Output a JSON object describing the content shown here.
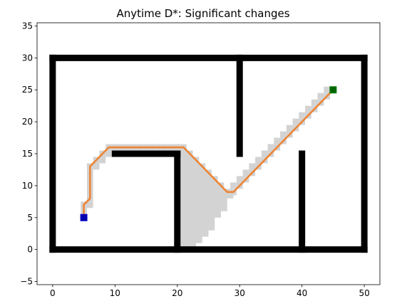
{
  "chart_data": {
    "type": "scatter",
    "title": "Anytime D*: Significant changes",
    "xlabel": "",
    "ylabel": "",
    "xlim": [
      -2.5,
      52.5
    ],
    "ylim": [
      -5.5,
      35.5
    ],
    "x_ticks": [
      0,
      10,
      20,
      30,
      40,
      50
    ],
    "y_ticks": [
      -5,
      0,
      5,
      10,
      15,
      20,
      25,
      30,
      35
    ],
    "grid": false,
    "colors": {
      "obstacle": "#000000",
      "visited": "#d3d3d3",
      "path": "#ed8434",
      "start": "#0000aa",
      "goal": "#006400"
    },
    "start": [
      5,
      5
    ],
    "goal": [
      45,
      25
    ],
    "walls": [
      {
        "from": [
          0,
          0
        ],
        "to": [
          50,
          0
        ]
      },
      {
        "from": [
          50,
          0
        ],
        "to": [
          50,
          30
        ]
      },
      {
        "from": [
          0,
          30
        ],
        "to": [
          50,
          30
        ]
      },
      {
        "from": [
          0,
          0
        ],
        "to": [
          0,
          30
        ]
      },
      {
        "from": [
          10,
          15
        ],
        "to": [
          20,
          15
        ]
      },
      {
        "from": [
          20,
          0
        ],
        "to": [
          20,
          15
        ]
      },
      {
        "from": [
          30,
          15
        ],
        "to": [
          30,
          30
        ]
      },
      {
        "from": [
          40,
          0
        ],
        "to": [
          40,
          15
        ]
      }
    ],
    "visited_region": [
      [
        20,
        0
      ],
      [
        23,
        0
      ],
      [
        23,
        1
      ],
      [
        24,
        1
      ],
      [
        24,
        2
      ],
      [
        25,
        2
      ],
      [
        25,
        3
      ],
      [
        26,
        3
      ],
      [
        26,
        5
      ],
      [
        27,
        5
      ],
      [
        27,
        6
      ],
      [
        28,
        6
      ],
      [
        28,
        8
      ],
      [
        29,
        8
      ],
      [
        29,
        9
      ],
      [
        28,
        9
      ],
      [
        26,
        11
      ],
      [
        25,
        12
      ],
      [
        24,
        13
      ],
      [
        22,
        15
      ],
      [
        20,
        15
      ]
    ],
    "visited_cells": [
      [
        5,
        5
      ],
      [
        5,
        6
      ],
      [
        5,
        7
      ],
      [
        6,
        7
      ],
      [
        6,
        8
      ],
      [
        6,
        9
      ],
      [
        6,
        10
      ],
      [
        6,
        11
      ],
      [
        6,
        12
      ],
      [
        6,
        13
      ],
      [
        7,
        13
      ],
      [
        7,
        14
      ],
      [
        8,
        14
      ],
      [
        8,
        15
      ],
      [
        9,
        15
      ],
      [
        9,
        16
      ],
      [
        10,
        16
      ],
      [
        11,
        16
      ],
      [
        12,
        16
      ],
      [
        13,
        16
      ],
      [
        14,
        16
      ],
      [
        15,
        16
      ],
      [
        16,
        16
      ],
      [
        17,
        16
      ],
      [
        18,
        16
      ],
      [
        19,
        16
      ],
      [
        20,
        16
      ],
      [
        21,
        16
      ],
      [
        21,
        15
      ],
      [
        22,
        15
      ],
      [
        22,
        14
      ],
      [
        23,
        14
      ],
      [
        23,
        13
      ],
      [
        24,
        13
      ],
      [
        24,
        12
      ],
      [
        25,
        12
      ],
      [
        25,
        11
      ],
      [
        26,
        11
      ],
      [
        26,
        10
      ],
      [
        27,
        10
      ],
      [
        27,
        9
      ],
      [
        28,
        9
      ],
      [
        29,
        9
      ],
      [
        29,
        10
      ],
      [
        30,
        10
      ],
      [
        30,
        11
      ],
      [
        31,
        11
      ],
      [
        31,
        12
      ],
      [
        32,
        12
      ],
      [
        32,
        13
      ],
      [
        33,
        13
      ],
      [
        33,
        14
      ],
      [
        34,
        14
      ],
      [
        34,
        15
      ],
      [
        35,
        15
      ],
      [
        35,
        16
      ],
      [
        36,
        16
      ],
      [
        36,
        17
      ],
      [
        37,
        17
      ],
      [
        37,
        18
      ],
      [
        38,
        18
      ],
      [
        38,
        19
      ],
      [
        39,
        19
      ],
      [
        39,
        20
      ],
      [
        40,
        20
      ],
      [
        40,
        21
      ],
      [
        41,
        21
      ],
      [
        41,
        22
      ],
      [
        42,
        22
      ],
      [
        42,
        23
      ],
      [
        43,
        23
      ],
      [
        43,
        24
      ],
      [
        44,
        24
      ],
      [
        44,
        25
      ]
    ],
    "path": [
      [
        5,
        5
      ],
      [
        5,
        7
      ],
      [
        6,
        8
      ],
      [
        6,
        13
      ],
      [
        7,
        14
      ],
      [
        8,
        15
      ],
      [
        9,
        16
      ],
      [
        21,
        16
      ],
      [
        28,
        9
      ],
      [
        29,
        9
      ],
      [
        30,
        10
      ],
      [
        45,
        25
      ]
    ]
  }
}
